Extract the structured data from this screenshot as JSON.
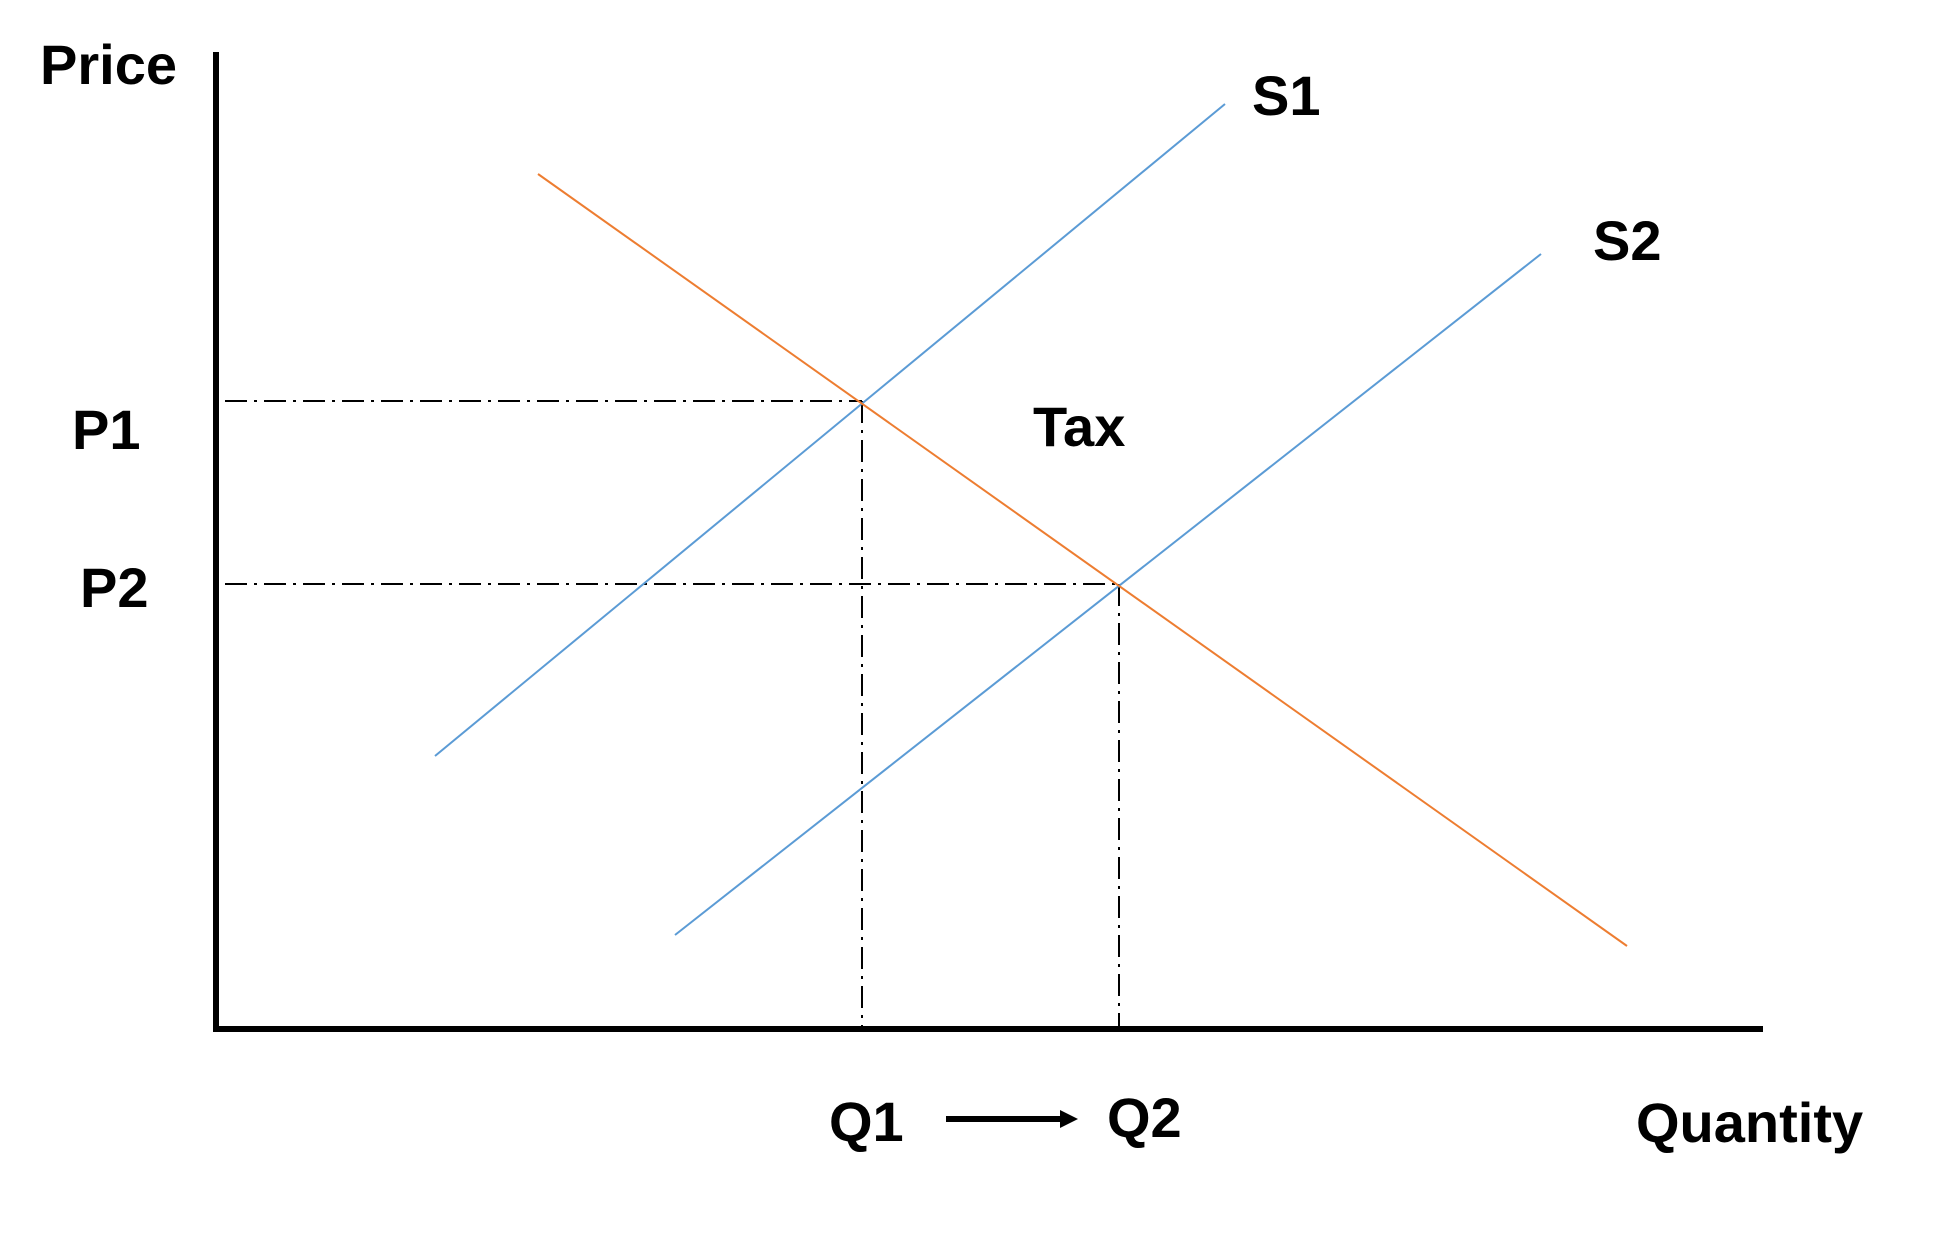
{
  "labels": {
    "y_axis": "Price",
    "x_axis": "Quantity",
    "supply_1": "S1",
    "supply_2": "S2",
    "tax": "Tax",
    "price_1": "P1",
    "price_2": "P2",
    "quantity_1": "Q1",
    "quantity_2": "Q2"
  },
  "colors": {
    "supply": "#5b9bd5",
    "demand": "#ed7d31",
    "axis": "#000000",
    "guides": "#000000"
  }
}
